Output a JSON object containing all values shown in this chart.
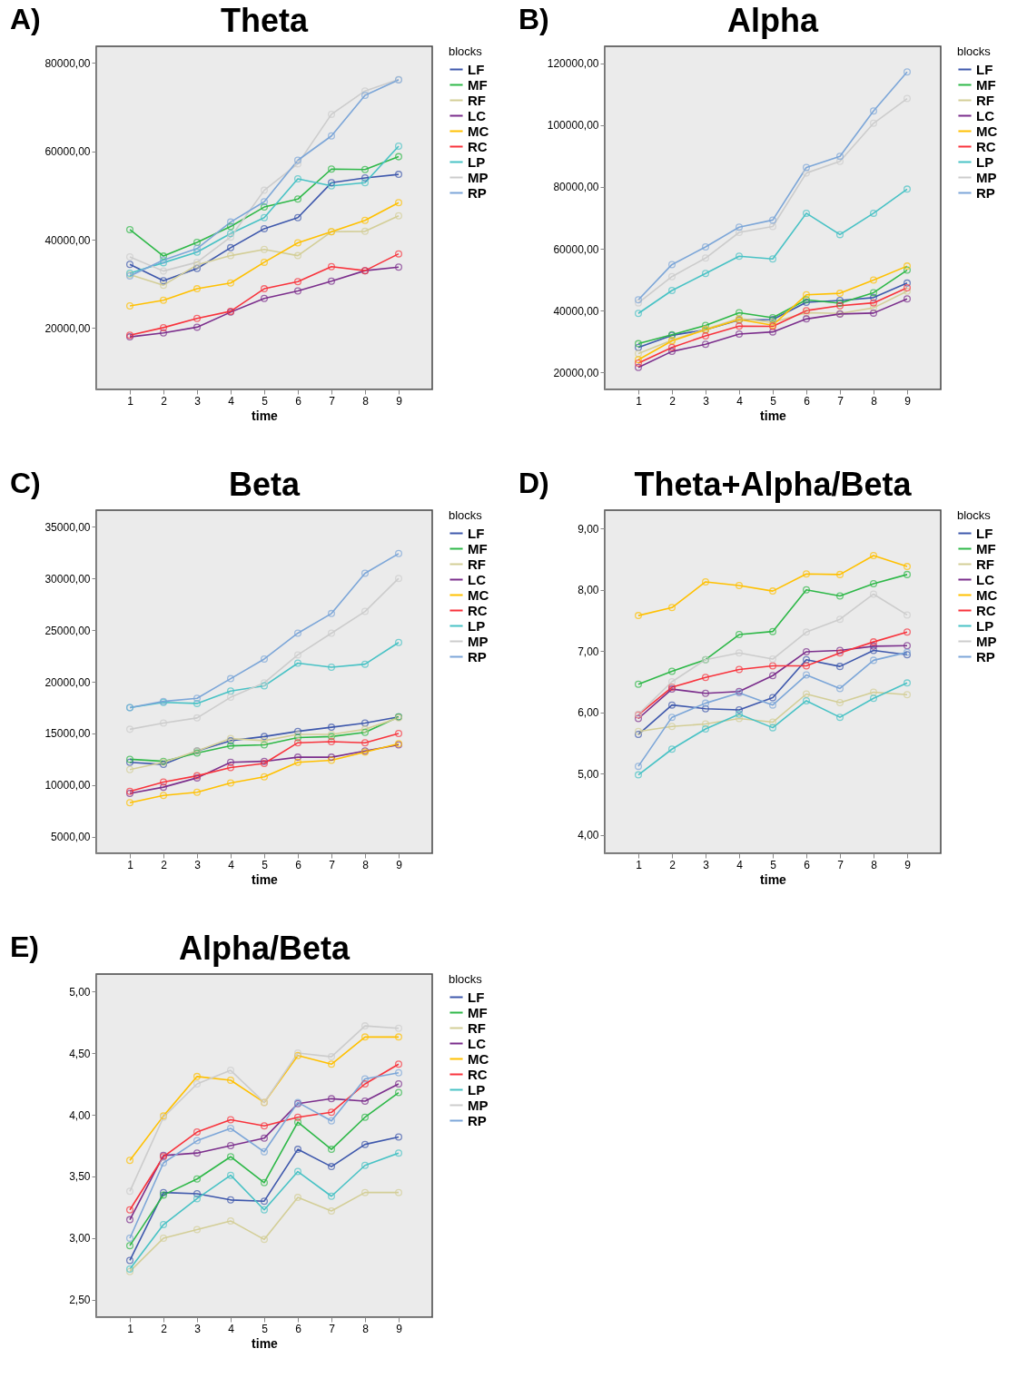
{
  "chart_data": [
    {
      "type": "line",
      "title": "Theta",
      "annotations": [
        "A)"
      ],
      "xlabel": "time",
      "legend_title": "blocks",
      "legend": "right",
      "marker": "circle",
      "grid": false,
      "x": [
        1,
        2,
        3,
        4,
        5,
        6,
        7,
        8,
        9
      ],
      "xlim": [
        0,
        10
      ],
      "xticks": [
        1,
        2,
        3,
        4,
        5,
        6,
        7,
        8,
        9
      ],
      "ylim": [
        6100,
        83800
      ],
      "yticks": [
        {
          "value": 20000,
          "label": "20000,00"
        },
        {
          "value": 40000,
          "label": "40000,00"
        },
        {
          "value": 60000,
          "label": "60000,00"
        },
        {
          "value": 80000,
          "label": "80000,00"
        }
      ],
      "series": [
        {
          "name": "LF",
          "color": "#3e58ac",
          "values": [
            34400,
            30700,
            33500,
            38200,
            42500,
            45000,
            52900,
            54000,
            54800
          ]
        },
        {
          "name": "MF",
          "color": "#2eb848",
          "values": [
            42300,
            36300,
            39400,
            43000,
            47400,
            49200,
            56000,
            55900,
            58800
          ]
        },
        {
          "name": "RF",
          "color": "#d3ce97",
          "values": [
            32100,
            29700,
            34300,
            36400,
            37800,
            36400,
            41800,
            41900,
            45400
          ]
        },
        {
          "name": "LC",
          "color": "#7b2e8c",
          "values": [
            18000,
            18900,
            20200,
            23600,
            26700,
            28400,
            30600,
            33000,
            33800
          ]
        },
        {
          "name": "MC",
          "color": "#ffc000",
          "values": [
            25000,
            26300,
            28900,
            30200,
            34900,
            39300,
            41800,
            44400,
            48400
          ]
        },
        {
          "name": "RC",
          "color": "#f8333c",
          "values": [
            18400,
            20100,
            22200,
            23800,
            28900,
            30500,
            33900,
            33000,
            36800
          ]
        },
        {
          "name": "LP",
          "color": "#48c2c5",
          "values": [
            32400,
            34800,
            37200,
            41400,
            45000,
            53800,
            52200,
            52900,
            61200
          ]
        },
        {
          "name": "MP",
          "color": "#cccccc",
          "values": [
            36100,
            32900,
            34900,
            40600,
            51200,
            57200,
            68400,
            73700,
            76300
          ]
        },
        {
          "name": "RP",
          "color": "#7ca6d8",
          "values": [
            31800,
            35400,
            38000,
            44000,
            48600,
            58000,
            63500,
            72700,
            76200
          ]
        }
      ]
    },
    {
      "type": "line",
      "title": "Alpha",
      "annotations": [
        "B)"
      ],
      "xlabel": "time",
      "legend_title": "blocks",
      "legend": "right",
      "marker": "circle",
      "grid": false,
      "x": [
        1,
        2,
        3,
        4,
        5,
        6,
        7,
        8,
        9
      ],
      "xlim": [
        0,
        10
      ],
      "xticks": [
        1,
        2,
        3,
        4,
        5,
        6,
        7,
        8,
        9
      ],
      "ylim": [
        14500,
        125500
      ],
      "yticks": [
        {
          "value": 20000,
          "label": "20000,00"
        },
        {
          "value": 40000,
          "label": "40000,00"
        },
        {
          "value": 60000,
          "label": "60000,00"
        },
        {
          "value": 80000,
          "label": "80000,00"
        },
        {
          "value": 100000,
          "label": "100000,00"
        },
        {
          "value": 120000,
          "label": "120000,00"
        }
      ],
      "series": [
        {
          "name": "LF",
          "color": "#3e58ac",
          "values": [
            28100,
            32000,
            33800,
            37000,
            37100,
            42700,
            43300,
            44200,
            48900
          ]
        },
        {
          "name": "MF",
          "color": "#2eb848",
          "values": [
            29300,
            32200,
            35200,
            39300,
            37700,
            43500,
            42400,
            45800,
            53100
          ]
        },
        {
          "name": "RF",
          "color": "#d3ce97",
          "values": [
            26100,
            30400,
            34000,
            37500,
            36200,
            39300,
            39100,
            40900,
            46300
          ]
        },
        {
          "name": "LC",
          "color": "#7b2e8c",
          "values": [
            21600,
            26800,
            29100,
            32400,
            33100,
            37300,
            38900,
            39200,
            43800
          ]
        },
        {
          "name": "MC",
          "color": "#ffc000",
          "values": [
            24100,
            30200,
            33800,
            37100,
            35300,
            45100,
            45600,
            49900,
            54400
          ]
        },
        {
          "name": "RC",
          "color": "#f8333c",
          "values": [
            23000,
            28100,
            31800,
            35000,
            34900,
            40000,
            41600,
            42500,
            47400
          ]
        },
        {
          "name": "LP",
          "color": "#48c2c5",
          "values": [
            39100,
            46500,
            52000,
            57600,
            56700,
            71500,
            64600,
            71500,
            79300
          ]
        },
        {
          "name": "MP",
          "color": "#cccccc",
          "values": [
            42500,
            51000,
            57000,
            65300,
            67200,
            84500,
            88300,
            100600,
            108600
          ]
        },
        {
          "name": "RP",
          "color": "#7ca6d8",
          "values": [
            43500,
            54900,
            60600,
            67000,
            69300,
            86300,
            89900,
            104600,
            117200
          ]
        }
      ]
    },
    {
      "type": "line",
      "title": "Beta",
      "annotations": [
        "C)"
      ],
      "xlabel": "time",
      "legend_title": "blocks",
      "legend": "right",
      "marker": "circle",
      "grid": false,
      "x": [
        1,
        2,
        3,
        4,
        5,
        6,
        7,
        8,
        9
      ],
      "xlim": [
        0,
        10
      ],
      "xticks": [
        1,
        2,
        3,
        4,
        5,
        6,
        7,
        8,
        9
      ],
      "ylim": [
        3400,
        36600
      ],
      "yticks": [
        {
          "value": 5000,
          "label": "5000,00"
        },
        {
          "value": 10000,
          "label": "10000,00"
        },
        {
          "value": 15000,
          "label": "15000,00"
        },
        {
          "value": 20000,
          "label": "20000,00"
        },
        {
          "value": 25000,
          "label": "25000,00"
        },
        {
          "value": 30000,
          "label": "30000,00"
        },
        {
          "value": 35000,
          "label": "35000,00"
        }
      ],
      "series": [
        {
          "name": "LF",
          "color": "#3e58ac",
          "values": [
            12200,
            12000,
            13300,
            14300,
            14700,
            15200,
            15600,
            16000,
            16600
          ]
        },
        {
          "name": "MF",
          "color": "#2eb848",
          "values": [
            12500,
            12300,
            13100,
            13800,
            13900,
            14600,
            14700,
            15100,
            16600
          ]
        },
        {
          "name": "RF",
          "color": "#d3ce97",
          "values": [
            11500,
            12200,
            13300,
            14500,
            14300,
            14900,
            14900,
            15400,
            16500
          ]
        },
        {
          "name": "LC",
          "color": "#7b2e8c",
          "values": [
            9200,
            9800,
            10700,
            12200,
            12300,
            12700,
            12700,
            13300,
            13900
          ]
        },
        {
          "name": "MC",
          "color": "#ffc000",
          "values": [
            8300,
            9000,
            9300,
            10200,
            10800,
            12200,
            12400,
            13200,
            14000
          ]
        },
        {
          "name": "RC",
          "color": "#f8333c",
          "values": [
            9400,
            10300,
            10900,
            11700,
            12100,
            14100,
            14200,
            14100,
            15000
          ]
        },
        {
          "name": "LP",
          "color": "#48c2c5",
          "values": [
            17500,
            18000,
            17900,
            19100,
            19600,
            21800,
            21400,
            21700,
            23800
          ]
        },
        {
          "name": "MP",
          "color": "#cccccc",
          "values": [
            15400,
            16000,
            16500,
            18500,
            19900,
            22600,
            24700,
            26800,
            30000
          ]
        },
        {
          "name": "RP",
          "color": "#7ca6d8",
          "values": [
            17500,
            18100,
            18400,
            20300,
            22200,
            24700,
            26600,
            30500,
            32400
          ]
        }
      ]
    },
    {
      "type": "line",
      "title": "Theta+Alpha/Beta",
      "annotations": [
        "D)"
      ],
      "xlabel": "time",
      "legend_title": "blocks",
      "legend": "right",
      "marker": "circle",
      "grid": false,
      "x": [
        1,
        2,
        3,
        4,
        5,
        6,
        7,
        8,
        9
      ],
      "xlim": [
        0,
        10
      ],
      "xticks": [
        1,
        2,
        3,
        4,
        5,
        6,
        7,
        8,
        9
      ],
      "ylim": [
        3.7,
        9.3
      ],
      "yticks": [
        {
          "value": 4,
          "label": "4,00"
        },
        {
          "value": 5,
          "label": "5,00"
        },
        {
          "value": 6,
          "label": "6,00"
        },
        {
          "value": 7,
          "label": "7,00"
        },
        {
          "value": 8,
          "label": "8,00"
        },
        {
          "value": 9,
          "label": "9,00"
        }
      ],
      "series": [
        {
          "name": "LF",
          "color": "#3e58ac",
          "values": [
            5.64,
            6.12,
            6.06,
            6.04,
            6.24,
            6.86,
            6.75,
            7.01,
            6.94
          ]
        },
        {
          "name": "MF",
          "color": "#2eb848",
          "values": [
            6.46,
            6.67,
            6.86,
            7.27,
            7.32,
            8.0,
            7.9,
            8.1,
            8.25
          ]
        },
        {
          "name": "RF",
          "color": "#d3ce97",
          "values": [
            5.69,
            5.77,
            5.81,
            5.9,
            5.84,
            6.3,
            6.16,
            6.33,
            6.29
          ]
        },
        {
          "name": "LC",
          "color": "#7b2e8c",
          "values": [
            5.9,
            6.38,
            6.31,
            6.34,
            6.6,
            6.99,
            7.01,
            7.08,
            7.09
          ]
        },
        {
          "name": "MC",
          "color": "#ffc000",
          "values": [
            7.58,
            7.71,
            8.13,
            8.07,
            7.98,
            8.26,
            8.25,
            8.56,
            8.38
          ]
        },
        {
          "name": "RC",
          "color": "#f8333c",
          "values": [
            5.96,
            6.41,
            6.57,
            6.7,
            6.76,
            6.76,
            6.97,
            7.15,
            7.31
          ]
        },
        {
          "name": "LP",
          "color": "#48c2c5",
          "values": [
            4.98,
            5.4,
            5.73,
            5.97,
            5.75,
            6.19,
            5.92,
            6.23,
            6.48
          ]
        },
        {
          "name": "MP",
          "color": "#cccccc",
          "values": [
            5.97,
            6.5,
            6.86,
            6.97,
            6.87,
            7.31,
            7.52,
            7.93,
            7.59
          ]
        },
        {
          "name": "RP",
          "color": "#7ca6d8",
          "values": [
            5.12,
            5.92,
            6.15,
            6.32,
            6.12,
            6.61,
            6.39,
            6.85,
            6.98
          ]
        }
      ]
    },
    {
      "type": "line",
      "title": "Alpha/Beta",
      "annotations": [
        "E)"
      ],
      "xlabel": "time",
      "legend_title": "blocks",
      "legend": "right",
      "marker": "circle",
      "grid": false,
      "x": [
        1,
        2,
        3,
        4,
        5,
        6,
        7,
        8,
        9
      ],
      "xlim": [
        0,
        10
      ],
      "xticks": [
        1,
        2,
        3,
        4,
        5,
        6,
        7,
        8,
        9
      ],
      "ylim": [
        2.36,
        5.14
      ],
      "yticks": [
        {
          "value": 2.5,
          "label": "2,50"
        },
        {
          "value": 3,
          "label": "3,00"
        },
        {
          "value": 3.5,
          "label": "3,50"
        },
        {
          "value": 4,
          "label": "4,00"
        },
        {
          "value": 4.5,
          "label": "4,50"
        },
        {
          "value": 5,
          "label": "5,00"
        }
      ],
      "series": [
        {
          "name": "LF",
          "color": "#3e58ac",
          "values": [
            2.82,
            3.37,
            3.36,
            3.31,
            3.3,
            3.72,
            3.58,
            3.76,
            3.82
          ]
        },
        {
          "name": "MF",
          "color": "#2eb848",
          "values": [
            2.94,
            3.35,
            3.48,
            3.66,
            3.45,
            3.94,
            3.72,
            3.98,
            4.18
          ]
        },
        {
          "name": "RF",
          "color": "#d3ce97",
          "values": [
            2.73,
            3.0,
            3.07,
            3.14,
            2.99,
            3.33,
            3.22,
            3.37,
            3.37
          ]
        },
        {
          "name": "LC",
          "color": "#7b2e8c",
          "values": [
            3.15,
            3.67,
            3.69,
            3.75,
            3.81,
            4.09,
            4.13,
            4.11,
            4.25
          ]
        },
        {
          "name": "MC",
          "color": "#ffc000",
          "values": [
            3.63,
            3.99,
            4.31,
            4.28,
            4.1,
            4.48,
            4.41,
            4.63,
            4.63
          ]
        },
        {
          "name": "RC",
          "color": "#f8333c",
          "values": [
            3.23,
            3.66,
            3.86,
            3.96,
            3.91,
            3.98,
            4.02,
            4.25,
            4.41
          ]
        },
        {
          "name": "LP",
          "color": "#48c2c5",
          "values": [
            2.75,
            3.11,
            3.32,
            3.51,
            3.23,
            3.54,
            3.34,
            3.59,
            3.69
          ]
        },
        {
          "name": "MP",
          "color": "#cccccc",
          "values": [
            3.38,
            3.98,
            4.25,
            4.36,
            4.1,
            4.5,
            4.47,
            4.72,
            4.7
          ]
        },
        {
          "name": "RP",
          "color": "#7ca6d8",
          "values": [
            3.0,
            3.61,
            3.79,
            3.89,
            3.7,
            4.1,
            3.95,
            4.29,
            4.34
          ]
        }
      ]
    }
  ]
}
